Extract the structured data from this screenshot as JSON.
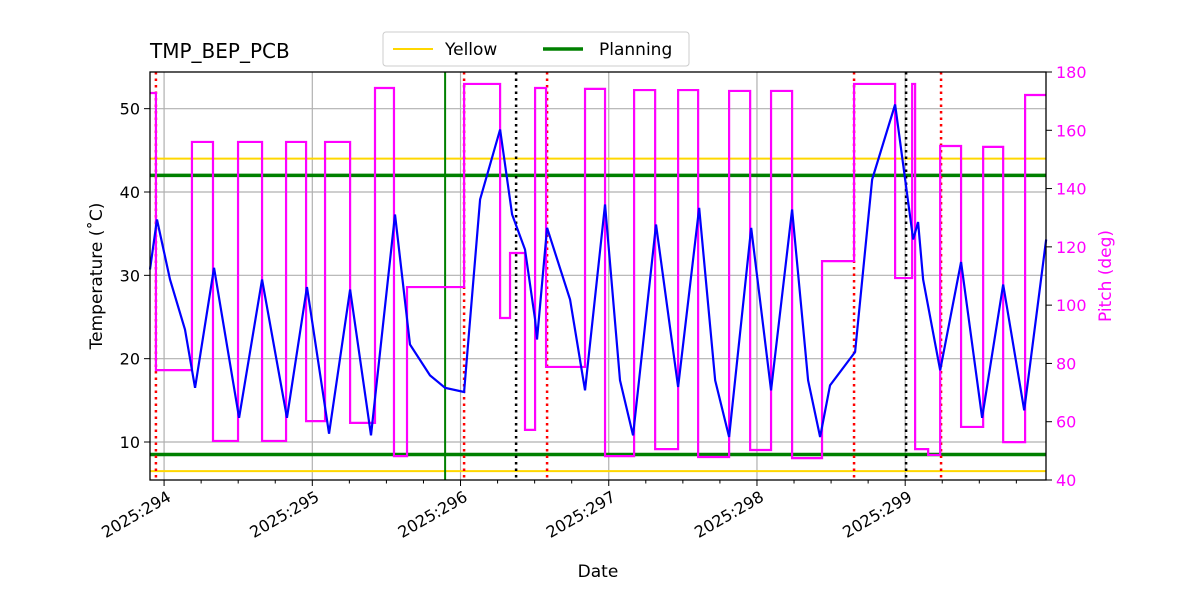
{
  "chart_data": {
    "type": "line",
    "title": "TMP_BEP_PCB",
    "xlabel": "Date",
    "ylabel": "Temperature ($^\\circ$C)",
    "ylabel_display": "Temperature (˚C)",
    "y2label": "Pitch (deg)",
    "xlim": [
      293.905,
      299.95
    ],
    "ylim": [
      5.44,
      54.4
    ],
    "y2lim": [
      40,
      180
    ],
    "x_ticks": [
      294,
      295,
      296,
      297,
      298,
      299
    ],
    "x_tick_labels": [
      "2025:294",
      "2025:295",
      "2025:296",
      "2025:297",
      "2025:298",
      "2025:299"
    ],
    "y_ticks": [
      10,
      20,
      30,
      40,
      50
    ],
    "y2_ticks": [
      40,
      60,
      80,
      100,
      120,
      140,
      160,
      180
    ],
    "grid": true,
    "legend_position": "top-center",
    "legend": [
      {
        "name": "Yellow",
        "color": "#ffd700"
      },
      {
        "name": "Planning",
        "color": "#008000"
      }
    ],
    "colors": {
      "temperature": "#0000ff",
      "pitch": "#ff00ff",
      "right_axis": "#ff00ff",
      "red_marker": "#ff0000",
      "black_marker": "#000000"
    },
    "hlines": [
      {
        "series": "Yellow",
        "y": 44
      },
      {
        "series": "Yellow",
        "y": 6.5
      },
      {
        "series": "Planning",
        "y": 42
      },
      {
        "series": "Planning",
        "y": 8.5
      }
    ],
    "planning_vline": 295.896,
    "red_dotted_vlines": [
      293.945,
      296.024,
      296.584,
      298.655,
      299.242
    ],
    "black_dotted_vlines": [
      296.375,
      299.006
    ],
    "temperature": [
      [
        293.905,
        30.7
      ],
      [
        293.952,
        36.7
      ],
      [
        294.04,
        29.5
      ],
      [
        294.141,
        23.5
      ],
      [
        294.209,
        16.5
      ],
      [
        294.337,
        30.9
      ],
      [
        294.506,
        12.9
      ],
      [
        294.661,
        29.5
      ],
      [
        294.829,
        12.9
      ],
      [
        294.964,
        28.6
      ],
      [
        295.113,
        11.0
      ],
      [
        295.255,
        28.3
      ],
      [
        295.396,
        10.8
      ],
      [
        295.558,
        37.3
      ],
      [
        295.659,
        21.7
      ],
      [
        295.794,
        18.0
      ],
      [
        295.896,
        16.5
      ],
      [
        296.024,
        16.0
      ],
      [
        296.132,
        39.1
      ],
      [
        296.267,
        47.5
      ],
      [
        296.348,
        37.3
      ],
      [
        296.435,
        33.1
      ],
      [
        296.503,
        24.7
      ],
      [
        296.516,
        22.3
      ],
      [
        296.584,
        35.7
      ],
      [
        296.739,
        27.1
      ],
      [
        296.84,
        16.2
      ],
      [
        296.975,
        38.5
      ],
      [
        297.076,
        17.4
      ],
      [
        297.164,
        10.8
      ],
      [
        297.319,
        36.1
      ],
      [
        297.468,
        16.6
      ],
      [
        297.61,
        38.1
      ],
      [
        297.718,
        17.4
      ],
      [
        297.812,
        10.6
      ],
      [
        297.961,
        35.7
      ],
      [
        298.095,
        16.2
      ],
      [
        298.237,
        37.9
      ],
      [
        298.345,
        17.4
      ],
      [
        298.426,
        10.6
      ],
      [
        298.493,
        16.8
      ],
      [
        298.662,
        20.8
      ],
      [
        298.777,
        41.5
      ],
      [
        298.932,
        50.5
      ],
      [
        299.054,
        34.3
      ],
      [
        299.087,
        36.4
      ],
      [
        299.121,
        29.5
      ],
      [
        299.236,
        18.6
      ],
      [
        299.377,
        31.6
      ],
      [
        299.519,
        12.9
      ],
      [
        299.661,
        28.9
      ],
      [
        299.803,
        13.8
      ],
      [
        299.951,
        34.3
      ]
    ],
    "pitch_steps": [
      [
        293.905,
        172.8
      ],
      [
        293.945,
        77.7
      ],
      [
        294.188,
        156.0
      ],
      [
        294.33,
        53.4
      ],
      [
        294.499,
        156.0
      ],
      [
        294.661,
        53.4
      ],
      [
        294.823,
        156.0
      ],
      [
        294.958,
        60.2
      ],
      [
        295.086,
        156.0
      ],
      [
        295.255,
        59.6
      ],
      [
        295.423,
        174.5
      ],
      [
        295.551,
        48.2
      ],
      [
        295.639,
        106.2
      ],
      [
        296.024,
        175.9
      ],
      [
        296.267,
        95.6
      ],
      [
        296.334,
        117.9
      ],
      [
        296.435,
        57.2
      ],
      [
        296.503,
        174.5
      ],
      [
        296.577,
        78.8
      ],
      [
        296.84,
        174.2
      ],
      [
        296.975,
        48.2
      ],
      [
        297.171,
        173.8
      ],
      [
        297.313,
        50.6
      ],
      [
        297.468,
        173.8
      ],
      [
        297.603,
        47.9
      ],
      [
        297.812,
        173.5
      ],
      [
        297.954,
        50.3
      ],
      [
        298.095,
        173.5
      ],
      [
        298.237,
        47.5
      ],
      [
        298.439,
        115.1
      ],
      [
        298.655,
        175.9
      ],
      [
        298.932,
        109.3
      ],
      [
        299.047,
        175.9
      ],
      [
        299.067,
        50.6
      ],
      [
        299.155,
        48.6
      ],
      [
        299.236,
        154.6
      ],
      [
        299.377,
        58.2
      ],
      [
        299.526,
        154.3
      ],
      [
        299.661,
        53.0
      ],
      [
        299.809,
        172.1
      ],
      [
        299.951,
        172.1
      ]
    ]
  }
}
